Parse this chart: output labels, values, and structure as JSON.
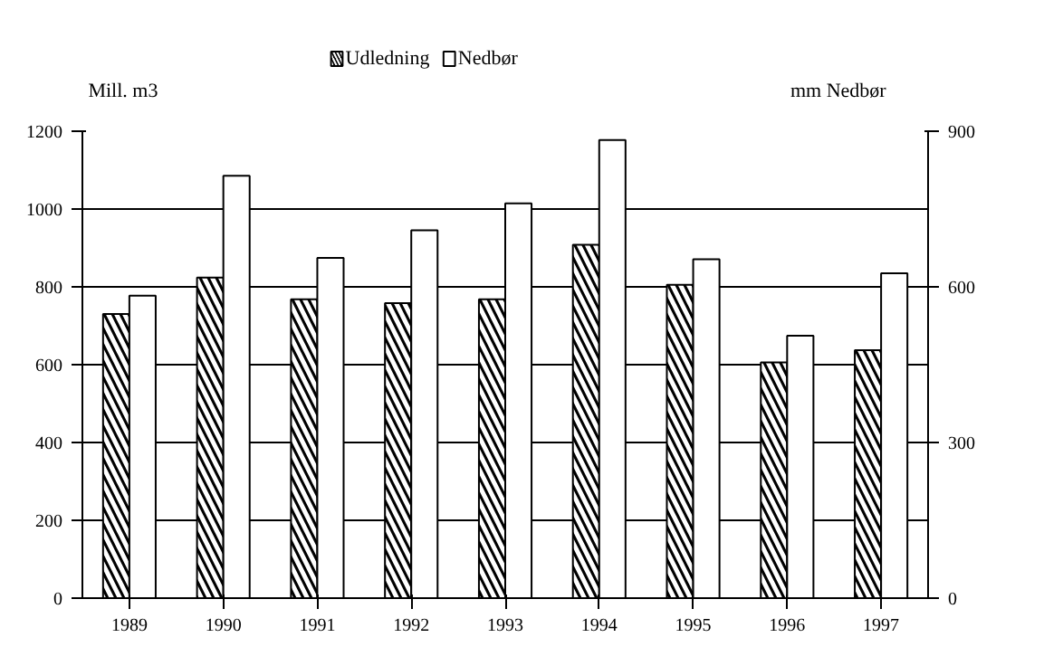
{
  "chart_data": {
    "type": "bar",
    "ylabel": "Mill. m3",
    "y2label": "mm Nedbør",
    "categories": [
      "1989",
      "1990",
      "1991",
      "1992",
      "1993",
      "1994",
      "1995",
      "1996",
      "1997"
    ],
    "series": [
      {
        "name": "Udledning",
        "color": "#000000",
        "values": [
          730,
          824,
          768,
          758,
          768,
          908,
          805,
          606,
          637
        ]
      },
      {
        "name": "Nedbør",
        "color": "#ffffff",
        "axis": "y2",
        "values": [
          583,
          814,
          656,
          709,
          761,
          883,
          653,
          506,
          626
        ]
      }
    ],
    "ylim": [
      0,
      1200
    ],
    "yticks": [
      0,
      200,
      400,
      600,
      800,
      1000,
      1200
    ],
    "y2lim": [
      0,
      900
    ],
    "y2ticks": [
      0,
      300,
      600,
      900
    ],
    "grid": "y",
    "legend": "top"
  }
}
